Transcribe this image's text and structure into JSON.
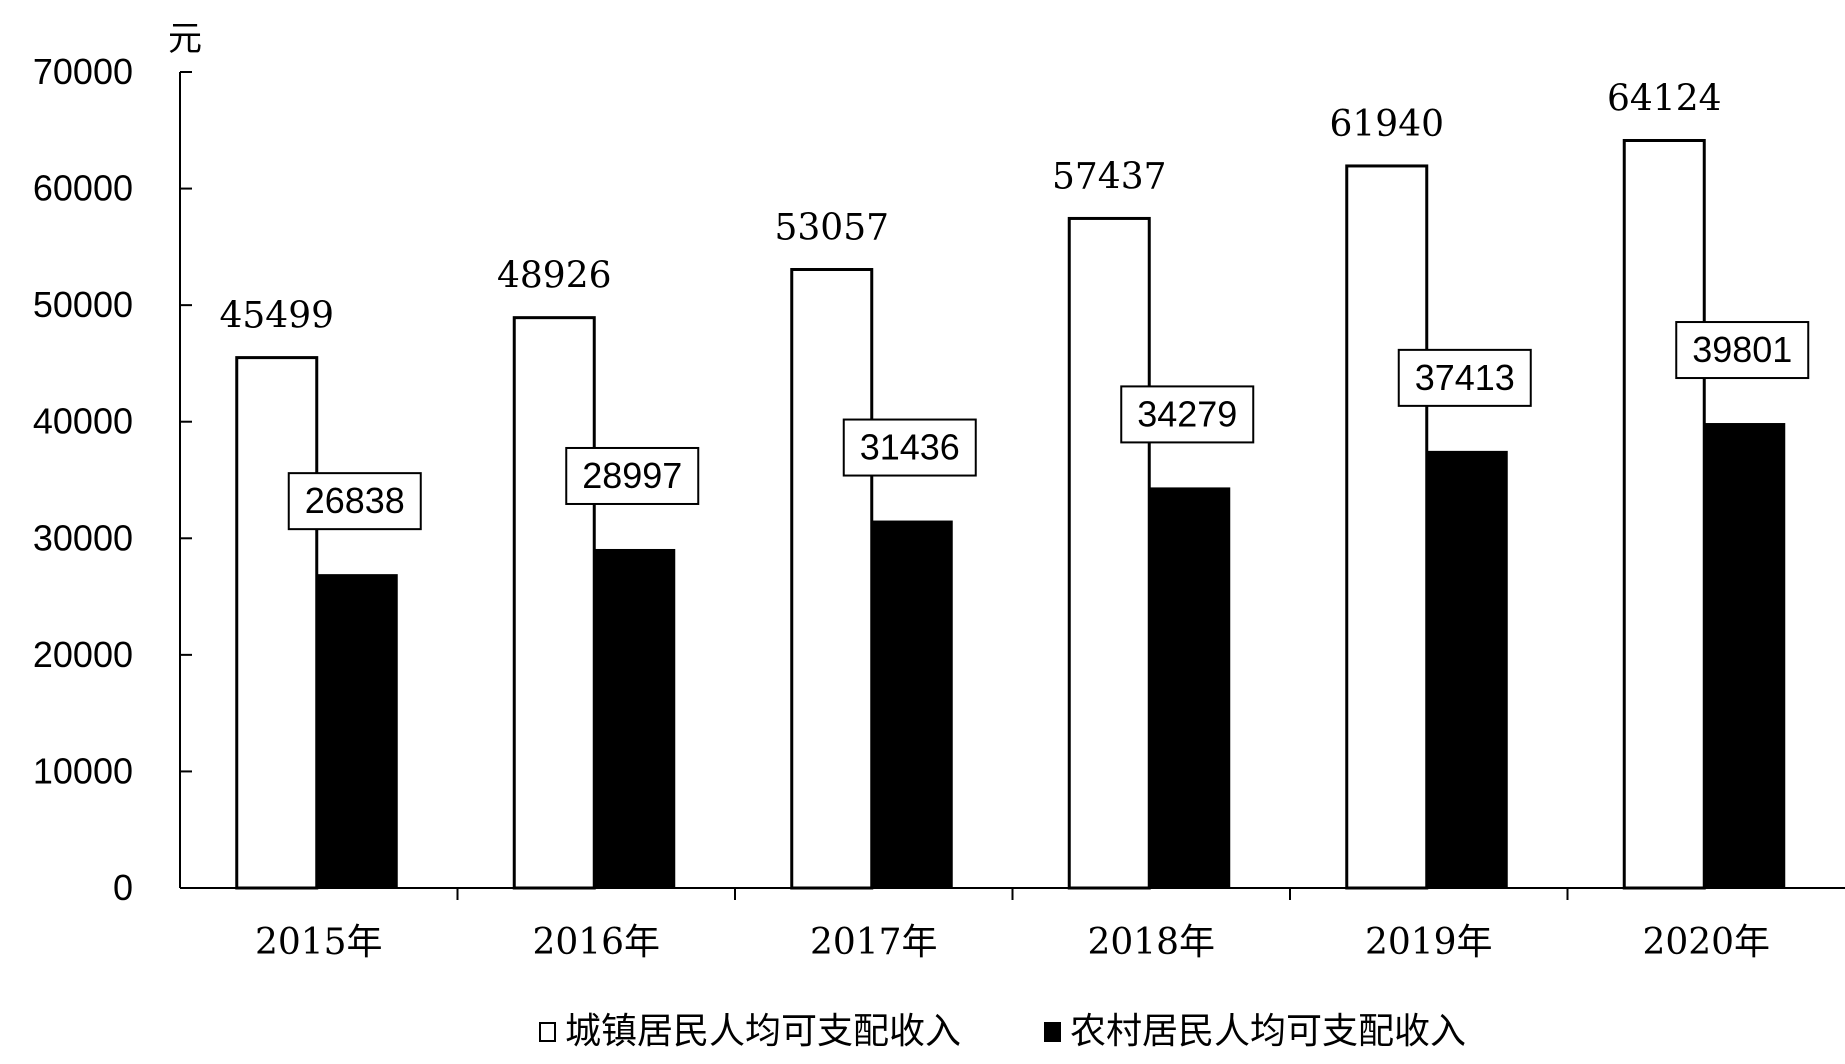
{
  "chart_data": {
    "type": "bar",
    "ylabel": "元",
    "ylim": [
      0,
      70000
    ],
    "yticks": [
      0,
      10000,
      20000,
      30000,
      40000,
      50000,
      60000,
      70000
    ],
    "categories": [
      "2015年",
      "2016年",
      "2017年",
      "2018年",
      "2019年",
      "2020年"
    ],
    "series": [
      {
        "name": "城镇居民人均可支配收入",
        "fill": "#ffffff",
        "values": [
          45499,
          48926,
          53057,
          57437,
          61940,
          64124
        ]
      },
      {
        "name": "农村居民人均可支配收入",
        "fill": "#000000",
        "values": [
          26838,
          28997,
          31436,
          34279,
          37413,
          39801
        ]
      }
    ],
    "grid": false,
    "legend_position": "bottom",
    "data_labels": true
  }
}
